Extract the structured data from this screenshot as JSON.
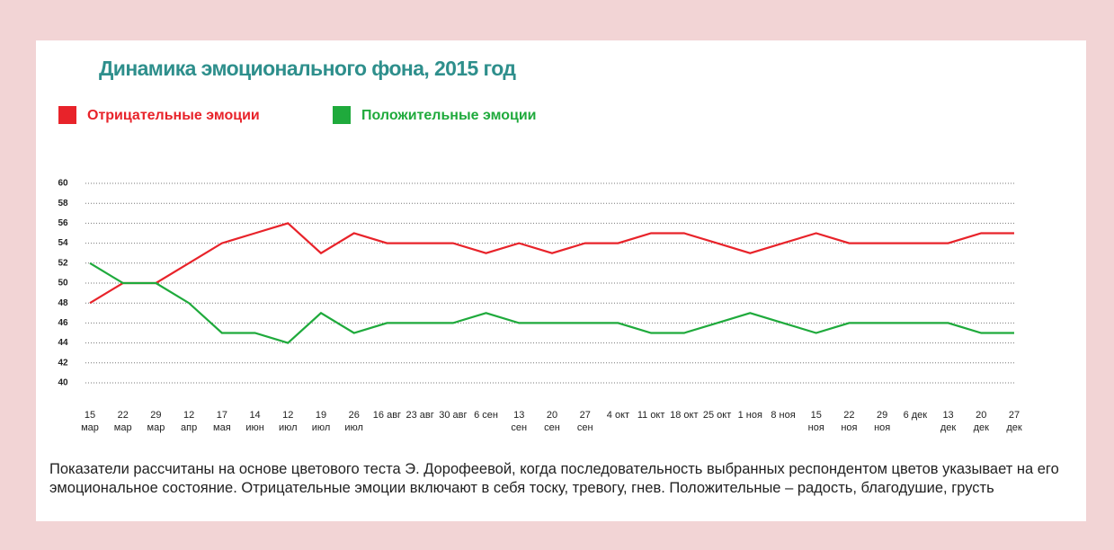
{
  "chart_data": {
    "type": "line",
    "title": "Динамика эмоционального фона, 2015 год",
    "categories": [
      "15 мар",
      "22 мар",
      "29 мар",
      "12 апр",
      "17 мая",
      "14 июн",
      "12 июл",
      "19 июл",
      "26 июл",
      "16 авг",
      "23 авг",
      "30 авг",
      "6 сен",
      "13 сен",
      "20 сен",
      "27 сен",
      "4 окт",
      "11 окт",
      "18 окт",
      "25 окт",
      "1 ноя",
      "8 ноя",
      "15 ноя",
      "22 ноя",
      "29 ноя",
      "6 дек",
      "13 дек",
      "20 дек",
      "27 дек"
    ],
    "series": [
      {
        "name": "Отрицательные эмоции",
        "color": "#e8232a",
        "values": [
          48,
          50,
          50,
          52,
          54,
          55,
          56,
          53,
          55,
          54,
          54,
          54,
          53,
          54,
          53,
          54,
          54,
          55,
          55,
          54,
          53,
          54,
          55,
          54,
          54,
          54,
          54,
          55,
          55
        ]
      },
      {
        "name": "Положительные эмоции",
        "color": "#1faa3c",
        "values": [
          52,
          50,
          50,
          48,
          45,
          45,
          44,
          47,
          45,
          46,
          46,
          46,
          47,
          46,
          46,
          46,
          46,
          45,
          45,
          46,
          47,
          46,
          45,
          46,
          46,
          46,
          46,
          45,
          45
        ]
      }
    ],
    "ylim": [
      40,
      60
    ],
    "yticks": [
      40,
      42,
      44,
      46,
      48,
      50,
      52,
      54,
      56,
      58,
      60
    ],
    "grid": true,
    "note": "Показатели рассчитаны на основе цветового теста Э. Дорофеевой, когда последовательность выбранных респондентом цветов указывает на его эмоциональное состояние. Отрицательные эмоции включают в себя тоску, тревогу, гнев. Положительные – радость, благодушие, грусть"
  }
}
